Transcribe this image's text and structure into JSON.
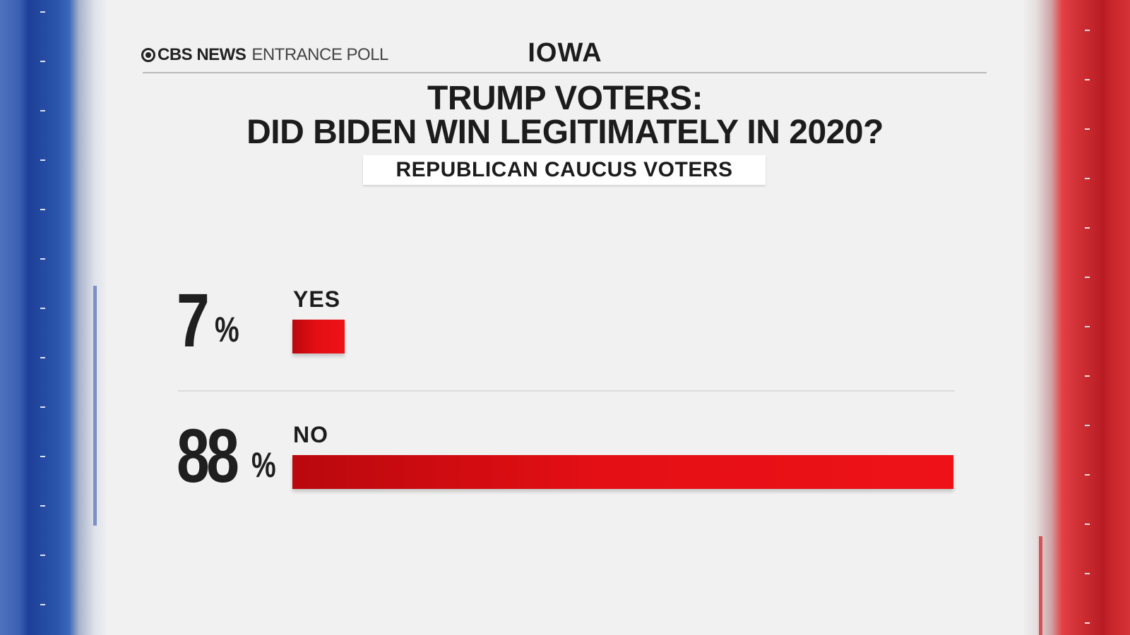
{
  "header": {
    "brand_news": "CBS NEWS",
    "brand_poll": "ENTRANCE POLL",
    "state": "IOWA"
  },
  "title_lines": [
    "TRUMP VOTERS:",
    "DID BIDEN WIN LEGITIMATELY IN 2020?"
  ],
  "subtitle": "REPUBLICAN CAUCUS VOTERS",
  "colors": {
    "bar": "#e30f14",
    "left_band": "#2a54ab",
    "right_band": "#c8262b"
  },
  "chart_data": {
    "type": "bar",
    "orientation": "horizontal",
    "title": "TRUMP VOTERS: DID BIDEN WIN LEGITIMATELY IN 2020?",
    "subtitle": "REPUBLICAN CAUCUS VOTERS",
    "categories": [
      "YES",
      "NO"
    ],
    "values": [
      7,
      88
    ],
    "unit": "%",
    "xlim": [
      0,
      88
    ],
    "grid": false
  }
}
